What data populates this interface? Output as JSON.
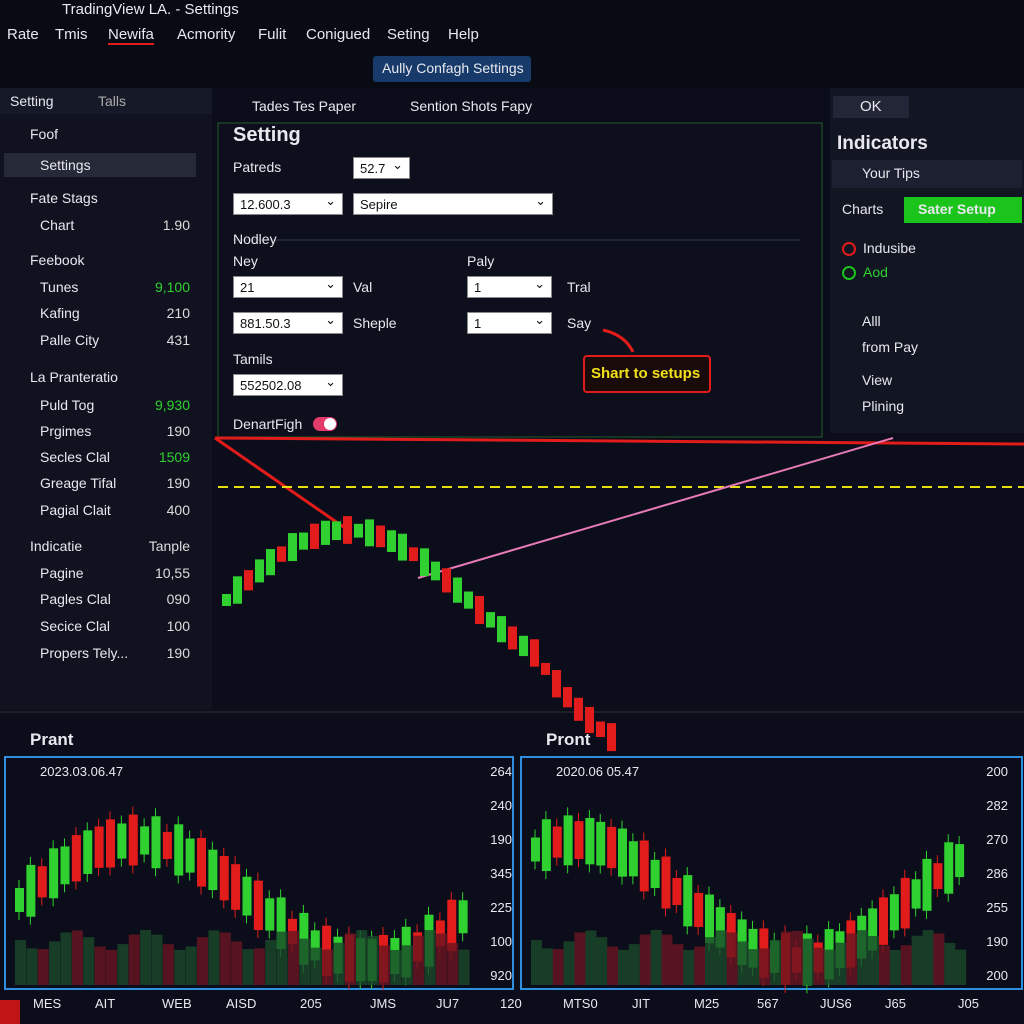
{
  "window": {
    "title": "TradingView LA. - Settings"
  },
  "menu": [
    "Rate",
    "Tmis",
    "Newifa",
    "Acmority",
    "Fulit",
    "Conigued",
    "Seting",
    "Help"
  ],
  "toolbar": {
    "button": "Aully Confagh Settings"
  },
  "sidebar": {
    "tabs": [
      "Setting",
      "Talls"
    ],
    "items": [
      {
        "label": "Foof",
        "group": true
      },
      {
        "label": "Settings",
        "selected": true
      },
      {
        "label": "Fate Stags",
        "group": true
      },
      {
        "label": "Chart",
        "value": "1.90"
      },
      {
        "label": "Feebook",
        "group": true
      },
      {
        "label": "Tunes",
        "value": "9,100",
        "up": true
      },
      {
        "label": "Kafing",
        "value": "210"
      },
      {
        "label": "Palle City",
        "value": "431"
      },
      {
        "label": "La Pranteratio",
        "group": true
      },
      {
        "label": "Puld Tog",
        "value": "9,930",
        "up": true
      },
      {
        "label": "Prgimes",
        "value": "190"
      },
      {
        "label": "Secles Clal",
        "value": "1509",
        "up": true
      },
      {
        "label": "Greage Tifal",
        "value": "190"
      },
      {
        "label": "Pagial Clait",
        "value": "400"
      },
      {
        "label": "Indicatie",
        "value": "Tanple",
        "group": true
      },
      {
        "label": "Pagine",
        "value": "10,55"
      },
      {
        "label": "Pagles Clal",
        "value": "090"
      },
      {
        "label": "Secice Clal",
        "value": "100"
      },
      {
        "label": "Propers Tely...",
        "value": "190"
      }
    ]
  },
  "tabs": [
    "Tades Tes Paper",
    "Sention Shots Fapy"
  ],
  "dialog": {
    "title": "Setting",
    "labels": [
      "Patreds",
      "Nodley",
      "Ney",
      "Paly",
      "Val",
      "Tral",
      "Sheple",
      "Say",
      "Tamils",
      "DenartFigh"
    ],
    "selects": [
      "52.7",
      "12.600.3",
      "Sepire",
      "21",
      "1",
      "881.50.3",
      "1",
      "552502.08"
    ]
  },
  "callout": "Shart to setups",
  "right_panel": {
    "ok": "OK",
    "title": "Indicators",
    "search": "Your Tips",
    "tabs": [
      "Charts",
      "Sater Setup"
    ],
    "options": [
      "Indusibe",
      "Aod"
    ],
    "links": [
      "Alll",
      "from Pay",
      "View",
      "Plining"
    ]
  },
  "bottom_panels": [
    {
      "title": "Prant",
      "date": "2023.03.06.47",
      "y_labels": [
        "264",
        "240",
        "190",
        "345",
        "225",
        "100",
        "920"
      ]
    },
    {
      "title": "Pront",
      "date": "2020.06 05.47",
      "y_labels": [
        "200",
        "282",
        "270",
        "286",
        "255",
        "190",
        "200"
      ]
    }
  ],
  "x_labels": [
    "MES",
    "AIT",
    "WEB",
    "AISD",
    "205",
    "JMS",
    "JU7",
    "120",
    "MTS0",
    "JIT",
    "M25",
    "567",
    "JUS6",
    "J65",
    "J05"
  ]
}
